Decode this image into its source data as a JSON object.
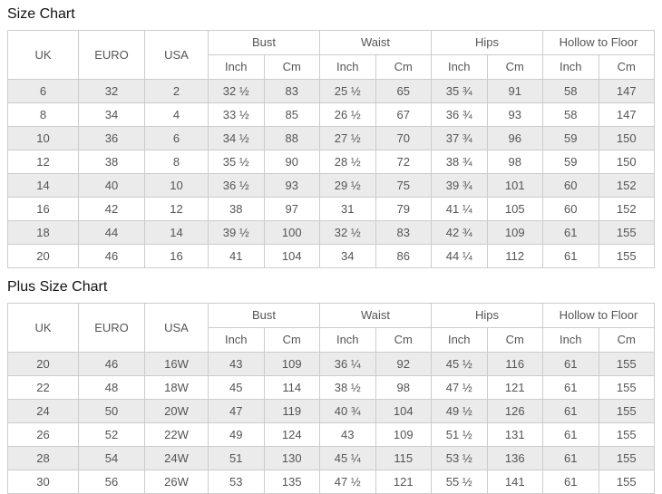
{
  "colors": {
    "row_stripe": "#ebebeb",
    "border": "#cccccc",
    "cell_text": "#555555",
    "title_text": "#111111"
  },
  "tables": [
    {
      "title": "Size Chart",
      "columns": {
        "uk": "UK",
        "euro": "EURO",
        "usa": "USA"
      },
      "groups": [
        "Bust",
        "Waist",
        "Hips",
        "Hollow to Floor"
      ],
      "units": {
        "inch": "Inch",
        "cm": "Cm"
      },
      "rows": [
        [
          "6",
          "32",
          "2",
          "32 ½",
          "83",
          "25 ½",
          "65",
          "35 ¾",
          "91",
          "58",
          "147"
        ],
        [
          "8",
          "34",
          "4",
          "33 ½",
          "85",
          "26 ½",
          "67",
          "36 ¾",
          "93",
          "58",
          "147"
        ],
        [
          "10",
          "36",
          "6",
          "34 ½",
          "88",
          "27 ½",
          "70",
          "37 ¾",
          "96",
          "59",
          "150"
        ],
        [
          "12",
          "38",
          "8",
          "35 ½",
          "90",
          "28 ½",
          "72",
          "38 ¾",
          "98",
          "59",
          "150"
        ],
        [
          "14",
          "40",
          "10",
          "36 ½",
          "93",
          "29 ½",
          "75",
          "39 ¾",
          "101",
          "60",
          "152"
        ],
        [
          "16",
          "42",
          "12",
          "38",
          "97",
          "31",
          "79",
          "41 ¼",
          "105",
          "60",
          "152"
        ],
        [
          "18",
          "44",
          "14",
          "39 ½",
          "100",
          "32 ½",
          "83",
          "42 ¾",
          "109",
          "61",
          "155"
        ],
        [
          "20",
          "46",
          "16",
          "41",
          "104",
          "34",
          "86",
          "44 ¼",
          "112",
          "61",
          "155"
        ]
      ]
    },
    {
      "title": "Plus Size Chart",
      "columns": {
        "uk": "UK",
        "euro": "EURO",
        "usa": "USA"
      },
      "groups": [
        "Bust",
        "Waist",
        "Hips",
        "Hollow to Floor"
      ],
      "units": {
        "inch": "Inch",
        "cm": "Cm"
      },
      "rows": [
        [
          "20",
          "46",
          "16W",
          "43",
          "109",
          "36 ¼",
          "92",
          "45 ½",
          "116",
          "61",
          "155"
        ],
        [
          "22",
          "48",
          "18W",
          "45",
          "114",
          "38 ½",
          "98",
          "47 ½",
          "121",
          "61",
          "155"
        ],
        [
          "24",
          "50",
          "20W",
          "47",
          "119",
          "40 ¾",
          "104",
          "49 ½",
          "126",
          "61",
          "155"
        ],
        [
          "26",
          "52",
          "22W",
          "49",
          "124",
          "43",
          "109",
          "51 ½",
          "131",
          "61",
          "155"
        ],
        [
          "28",
          "54",
          "24W",
          "51",
          "130",
          "45 ¼",
          "115",
          "53 ½",
          "136",
          "61",
          "155"
        ],
        [
          "30",
          "56",
          "26W",
          "53",
          "135",
          "47 ½",
          "121",
          "55 ½",
          "141",
          "61",
          "155"
        ]
      ]
    }
  ]
}
